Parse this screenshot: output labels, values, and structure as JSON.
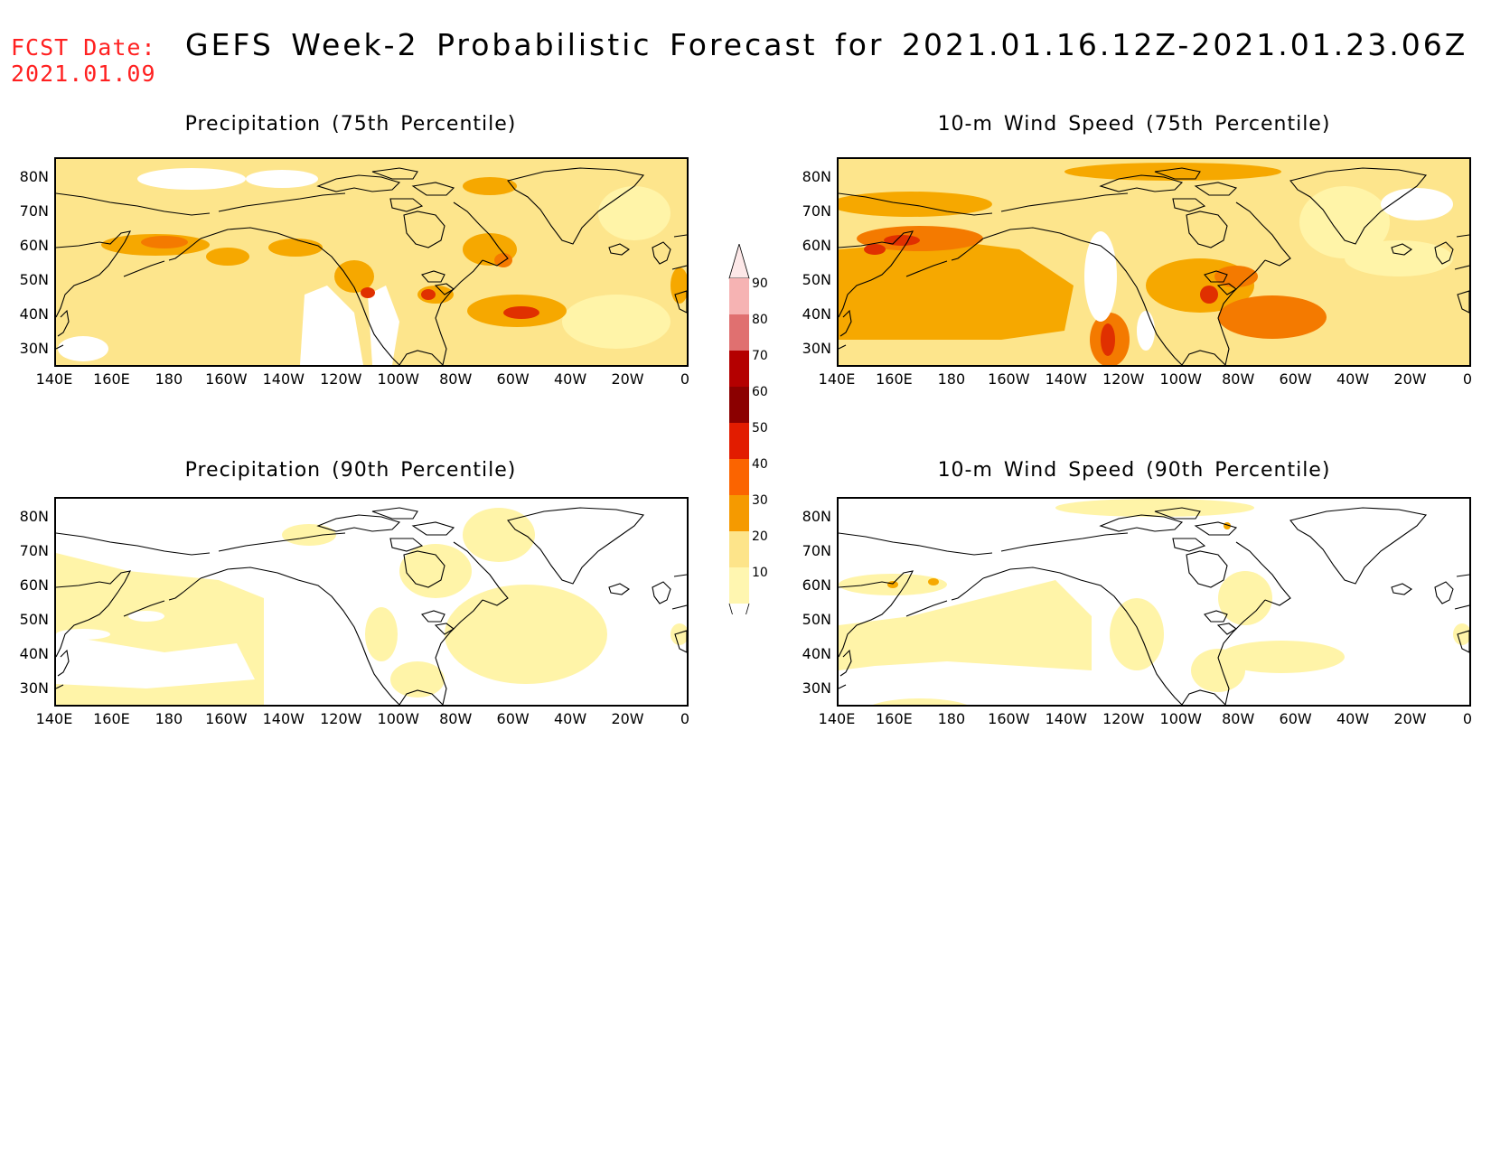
{
  "header": {
    "fcst_line1": "FCST Date:",
    "fcst_line2": "2021.01.09",
    "title": "GEFS Week-2 Probabilistic Forecast for 2021.01.16.12Z-2021.01.23.06Z"
  },
  "axes": {
    "x_ticks": [
      "140E",
      "160E",
      "180",
      "160W",
      "140W",
      "120W",
      "100W",
      "80W",
      "60W",
      "40W",
      "20W",
      "0"
    ],
    "y_ticks": [
      "80N",
      "70N",
      "60N",
      "50N",
      "40N",
      "30N"
    ]
  },
  "panels": [
    {
      "id": "precip75",
      "title": "Precipitation (75th Percentile)"
    },
    {
      "id": "wind75",
      "title": "10-m Wind Speed (75th Percentile)"
    },
    {
      "id": "precip90",
      "title": "Precipitation (90th Percentile)"
    },
    {
      "id": "wind90",
      "title": "10-m Wind Speed (90th Percentile)"
    }
  ],
  "colorbar": {
    "labels": [
      "90",
      "80",
      "70",
      "60",
      "50",
      "40",
      "30",
      "20",
      "10"
    ],
    "colors": [
      "#f6b3b3",
      "#e07070",
      "#b40000",
      "#8b0000",
      "#e21c00",
      "#fb6400",
      "#f59a00",
      "#fde48a",
      "#fff6b0"
    ]
  },
  "palette": {
    "p10": "#fff4a8",
    "p20": "#fde58c",
    "p30": "#f6a800",
    "p40": "#f47a00",
    "p50": "#e03000",
    "p60": "#9b0000",
    "coast": "#000000"
  }
}
